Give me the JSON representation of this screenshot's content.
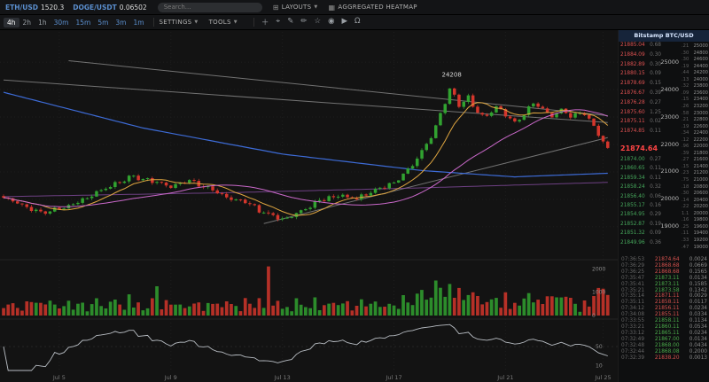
{
  "topbar": {
    "tickers": [
      {
        "symbol": "ETH/USD",
        "price": "1520.3"
      },
      {
        "symbol": "DOGE/USDT",
        "price": "0.06502"
      }
    ],
    "search_placeholder": "Search...",
    "layouts_label": "LAYOUTS",
    "heatmap_label": "AGGREGATED HEATMAP"
  },
  "toolbar": {
    "timeframes": [
      "4h",
      "2h",
      "1h",
      "30m",
      "15m",
      "5m",
      "3m",
      "1m"
    ],
    "active_timeframe": "4h",
    "minute_group_start": 3,
    "settings_label": "SETTINGS",
    "tools_label": "TOOLS",
    "icons": [
      {
        "name": "add-icon",
        "glyph": "＋"
      },
      {
        "name": "crosshair-icon",
        "glyph": "⌖"
      },
      {
        "name": "pencil-icon",
        "glyph": "✎"
      },
      {
        "name": "marker-icon",
        "glyph": "✏"
      },
      {
        "name": "star-icon",
        "glyph": "☆"
      },
      {
        "name": "camera-icon",
        "glyph": "◉"
      },
      {
        "name": "video-icon",
        "glyph": "▶"
      },
      {
        "name": "bell-icon",
        "glyph": "Ω"
      }
    ]
  },
  "panel": {
    "header": "Bitstamp BTC/USD",
    "current_price": "21874.64",
    "asks": [
      {
        "price": "21885.04",
        "size": "0.68"
      },
      {
        "price": "21884.09",
        "size": "0.30"
      },
      {
        "price": "21882.89",
        "size": "0.30"
      },
      {
        "price": "21880.15",
        "size": "0.09"
      },
      {
        "price": "21878.69",
        "size": "0.15"
      },
      {
        "price": "21876.67",
        "size": "0.39"
      },
      {
        "price": "21876.28",
        "size": "0.27"
      },
      {
        "price": "21875.60",
        "size": "1.25"
      },
      {
        "price": "21875.11",
        "size": "0.02"
      },
      {
        "price": "21874.85",
        "size": "0.11"
      }
    ],
    "bids": [
      {
        "price": "21874.00",
        "size": "0.27"
      },
      {
        "price": "21860.65",
        "size": "0.11"
      },
      {
        "price": "21859.34",
        "size": "0.11"
      },
      {
        "price": "21858.24",
        "size": "0.32"
      },
      {
        "price": "21856.40",
        "size": "0.06"
      },
      {
        "price": "21855.17",
        "size": "0.16"
      },
      {
        "price": "21854.95",
        "size": "0.29"
      },
      {
        "price": "21852.87",
        "size": "0.19"
      },
      {
        "price": "21851.32",
        "size": "0.09"
      },
      {
        "price": "21849.96",
        "size": "0.36"
      }
    ],
    "axis_ticks": [
      "25000",
      "24000",
      "23000",
      "22000",
      "21000",
      "20000",
      "19000"
    ],
    "ladder": [
      {
        "v": ".21",
        "p": "25000"
      },
      {
        "v": ".30",
        "p": "24800"
      },
      {
        "v": ".30",
        "p": "24600"
      },
      {
        "v": ".19",
        "p": "24400"
      },
      {
        "v": ".44",
        "p": "24200"
      },
      {
        "v": ".13",
        "p": "24000"
      },
      {
        "v": ".32",
        "p": "23800"
      },
      {
        "v": ".09",
        "p": "23600"
      },
      {
        "v": ".15",
        "p": "23400"
      },
      {
        "v": ".26",
        "p": "23200"
      },
      {
        "v": ".58",
        "p": "23000"
      },
      {
        "v": ".21",
        "p": "22800"
      },
      {
        "v": ".19",
        "p": "22600"
      },
      {
        "v": ".34",
        "p": "22400"
      },
      {
        "v": ".12",
        "p": "22200"
      },
      {
        "v": ".96",
        "p": "22000"
      },
      {
        "v": ".39",
        "p": "21800"
      },
      {
        "v": ".27",
        "p": "21600"
      },
      {
        "v": ".15",
        "p": "21400"
      },
      {
        "v": ".23",
        "p": "21200"
      },
      {
        "v": ".75",
        "p": "21000"
      },
      {
        "v": ".18",
        "p": "20800"
      },
      {
        "v": ".30",
        "p": "20600"
      },
      {
        "v": ".14",
        "p": "20400"
      },
      {
        "v": ".22",
        "p": "20200"
      },
      {
        "v": "1.1",
        "p": "20000"
      },
      {
        "v": ".16",
        "p": "19800"
      },
      {
        "v": ".25",
        "p": "19600"
      },
      {
        "v": ".11",
        "p": "19400"
      },
      {
        "v": ".33",
        "p": "19200"
      },
      {
        "v": ".47",
        "p": "19000"
      }
    ],
    "feed": [
      {
        "t": "07:36:53",
        "p": "21874.64",
        "a": "0.0024",
        "side": "r"
      },
      {
        "t": "07:36:29",
        "p": "21868.68",
        "a": "0.0669",
        "side": "r"
      },
      {
        "t": "07:36:25",
        "p": "21868.68",
        "a": "0.1565",
        "side": "r"
      },
      {
        "t": "07:35:47",
        "p": "21873.11",
        "a": "0.0134",
        "side": "g"
      },
      {
        "t": "07:35:41",
        "p": "21873.11",
        "a": "0.1585",
        "side": "g"
      },
      {
        "t": "07:35:21",
        "p": "21873.58",
        "a": "0.1342",
        "side": "g"
      },
      {
        "t": "07:35:14",
        "p": "21871.11",
        "a": "0.0029",
        "side": "r"
      },
      {
        "t": "07:35:11",
        "p": "21858.11",
        "a": "0.0117",
        "side": "r"
      },
      {
        "t": "07:34:12",
        "p": "21856.11",
        "a": "0.0234",
        "side": "r"
      },
      {
        "t": "07:34:08",
        "p": "21855.11",
        "a": "0.0334",
        "side": "r"
      },
      {
        "t": "07:33:55",
        "p": "21858.11",
        "a": "0.1134",
        "side": "g"
      },
      {
        "t": "07:33:21",
        "p": "21860.11",
        "a": "0.0534",
        "side": "g"
      },
      {
        "t": "07:33:12",
        "p": "21865.11",
        "a": "0.0234",
        "side": "g"
      },
      {
        "t": "07:32:49",
        "p": "21867.00",
        "a": "0.0134",
        "side": "g"
      },
      {
        "t": "07:32:48",
        "p": "21868.00",
        "a": "0.0434",
        "side": "g"
      },
      {
        "t": "07:32:44",
        "p": "21868.08",
        "a": "0.2000",
        "side": "g"
      },
      {
        "t": "07:32:39",
        "p": "21838.20",
        "a": "0.0013",
        "side": "r"
      }
    ]
  },
  "chart_data": {
    "type": "candlestick",
    "symbol": "BTC/USD",
    "exchange": "Bitstamp",
    "timeframe": "4h",
    "num_candles": 131,
    "current_price": 21874.64,
    "y_axis": {
      "min": 17900,
      "max": 26100,
      "ticks": [
        25000,
        24000,
        23000,
        22000,
        21000,
        20000,
        19000
      ]
    },
    "x_ticks": [
      "Jul 5",
      "Jul 9",
      "Jul 13",
      "Jul 17",
      "Jul 21",
      "Jul 25"
    ],
    "x_tick_indices": [
      12,
      36,
      60,
      84,
      108,
      129
    ],
    "annotation": {
      "label": "24208",
      "candle_index": 96
    },
    "close_keypoints": [
      [
        0,
        20050
      ],
      [
        4,
        19800
      ],
      [
        8,
        19500
      ],
      [
        12,
        19650
      ],
      [
        16,
        19900
      ],
      [
        20,
        20250
      ],
      [
        24,
        20600
      ],
      [
        28,
        20850
      ],
      [
        32,
        20650
      ],
      [
        36,
        20500
      ],
      [
        40,
        20700
      ],
      [
        44,
        20400
      ],
      [
        48,
        20100
      ],
      [
        52,
        19900
      ],
      [
        56,
        19500
      ],
      [
        60,
        19300
      ],
      [
        64,
        19550
      ],
      [
        68,
        19950
      ],
      [
        72,
        20150
      ],
      [
        76,
        20000
      ],
      [
        80,
        20350
      ],
      [
        84,
        20600
      ],
      [
        88,
        21200
      ],
      [
        92,
        22300
      ],
      [
        94,
        23100
      ],
      [
        96,
        24000
      ],
      [
        98,
        23450
      ],
      [
        100,
        23700
      ],
      [
        102,
        23150
      ],
      [
        104,
        23000
      ],
      [
        106,
        23400
      ],
      [
        108,
        23100
      ],
      [
        110,
        22800
      ],
      [
        112,
        23100
      ],
      [
        114,
        23500
      ],
      [
        116,
        23300
      ],
      [
        118,
        23000
      ],
      [
        120,
        23300
      ],
      [
        122,
        23000
      ],
      [
        125,
        23150
      ],
      [
        128,
        22400
      ],
      [
        130,
        21900
      ]
    ],
    "ma_fast_period": 9,
    "ma_mid_period": 30,
    "blue_line_keypoints": [
      [
        0,
        23900
      ],
      [
        30,
        22600
      ],
      [
        60,
        21650
      ],
      [
        90,
        21050
      ],
      [
        110,
        20820
      ],
      [
        130,
        20950
      ]
    ],
    "purple_line_keypoints": [
      [
        0,
        20100
      ],
      [
        50,
        20250
      ],
      [
        90,
        20420
      ],
      [
        130,
        20620
      ]
    ],
    "trendlines": [
      [
        [
          14,
          25050
        ],
        [
          130,
          23050
        ]
      ],
      [
        [
          0,
          24350
        ],
        [
          130,
          22800
        ]
      ],
      [
        [
          56,
          19120
        ],
        [
          130,
          22250
        ]
      ]
    ],
    "volume_axis": [
      2000,
      1000,
      0
    ],
    "volume_axis_max": 2200,
    "volume_spikes": {
      "33": 1250,
      "57": 2100,
      "93": 1500,
      "96": 1350,
      "129": 1150
    },
    "osc_axis": [
      50,
      10
    ]
  },
  "colors": {
    "up": "#31a230",
    "down": "#d4362c",
    "ma_fast": "#dfa640",
    "ma_mid": "#c968c9",
    "ma_slow_blue": "#3d6bd6",
    "ma_slow_purple": "#8c50aa",
    "accent_blue": "#5b8fcf",
    "price_red": "#ff4545"
  }
}
